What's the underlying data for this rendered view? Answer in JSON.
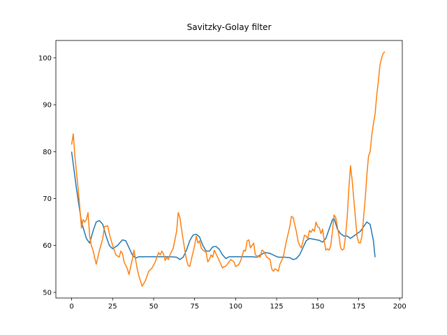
{
  "chart_data": {
    "type": "line",
    "title": "Savitzky-Golay filter",
    "xlim": [
      -9.6,
      201.6
    ],
    "ylim": [
      48.8,
      103.7
    ],
    "xticks": [
      0,
      25,
      50,
      75,
      100,
      125,
      150,
      175,
      200
    ],
    "yticks": [
      50,
      60,
      70,
      80,
      90,
      100
    ],
    "series": [
      {
        "color": "#1f77b4",
        "x": [
          0,
          3,
          6,
          9,
          11,
          13,
          15,
          17,
          19,
          21,
          23,
          25,
          28,
          31,
          33,
          35,
          37,
          39,
          41,
          45,
          50,
          55,
          60,
          64,
          66,
          68,
          70,
          72,
          74,
          76,
          78,
          80,
          82,
          84,
          86,
          88,
          90,
          92,
          94,
          96,
          100,
          105,
          110,
          113,
          115,
          118,
          121,
          124,
          126,
          130,
          133,
          135,
          137,
          139,
          141,
          143,
          145,
          148,
          151,
          153,
          155,
          157,
          159,
          160,
          162,
          164,
          166,
          168,
          170,
          172,
          174,
          176,
          178,
          180,
          182,
          184,
          185
        ],
        "values": [
          80,
          72,
          65,
          61.5,
          60.5,
          63,
          65,
          65.3,
          64.5,
          62,
          60,
          59.3,
          60,
          61.2,
          61,
          59.5,
          58,
          57.3,
          57.6,
          57.6,
          57.6,
          57.6,
          57.6,
          57.5,
          57,
          57.5,
          59,
          61,
          62.2,
          62.4,
          61.8,
          60,
          58.8,
          58.8,
          59.7,
          59.8,
          59.2,
          58,
          57.2,
          57.6,
          57.6,
          57.6,
          57.6,
          57.5,
          58,
          58.5,
          58.3,
          57.8,
          57.5,
          57.5,
          57.4,
          57,
          57.2,
          58,
          59.5,
          61,
          61.5,
          61.3,
          61.1,
          60.7,
          61.5,
          63.5,
          65.5,
          65.8,
          63.5,
          62.5,
          62,
          62,
          61.5,
          62,
          62.5,
          63,
          64,
          65,
          64.5,
          61,
          57.5
        ]
      },
      {
        "color": "#ff7f0e",
        "x": [
          0,
          1,
          2,
          4,
          5,
          6,
          7,
          8,
          9,
          10,
          11,
          12,
          13,
          15,
          17,
          19,
          20,
          22,
          23,
          25,
          27,
          29,
          30,
          31,
          32,
          34,
          35,
          36,
          37,
          38,
          39,
          40,
          41,
          43,
          45,
          47,
          49,
          51,
          53,
          54,
          55,
          56,
          57,
          58,
          59,
          60,
          62,
          64,
          65,
          66,
          67,
          69,
          70,
          71,
          72,
          73,
          75,
          76,
          77,
          78,
          79,
          80,
          81,
          82,
          83,
          84,
          85,
          86,
          87,
          89,
          91,
          92,
          93,
          94,
          96,
          97,
          99,
          100,
          102,
          103,
          105,
          106,
          107,
          108,
          109,
          110,
          111,
          112,
          113,
          115,
          116,
          117,
          119,
          121,
          122,
          123,
          124,
          125,
          126,
          127,
          129,
          131,
          133,
          134,
          135,
          137,
          138,
          139,
          140,
          141,
          142,
          143,
          144,
          145,
          146,
          147,
          148,
          149,
          150,
          151,
          152,
          153,
          154,
          155,
          156,
          157,
          158,
          159,
          160,
          161,
          162,
          163,
          164,
          165,
          166,
          167,
          168,
          169,
          170,
          171,
          172,
          173,
          174,
          175,
          176,
          177,
          178,
          179,
          180,
          181,
          182,
          183,
          184,
          185,
          186,
          187,
          188,
          189,
          190,
          191
        ],
        "values": [
          81.5,
          83.8,
          79,
          72,
          68,
          63.7,
          65.5,
          65,
          65.5,
          67,
          62,
          60,
          59,
          56,
          59,
          61.5,
          64,
          64.2,
          62.5,
          60,
          58,
          57.5,
          58.8,
          58.3,
          56.5,
          55,
          53.8,
          55.5,
          57,
          59,
          57,
          55,
          53.5,
          51.3,
          52.5,
          54.5,
          55.2,
          56.5,
          58.5,
          58,
          58.8,
          58.2,
          56.8,
          57.5,
          57,
          58,
          59.5,
          63,
          67,
          66,
          63.5,
          59,
          57,
          55.8,
          55.5,
          57,
          60,
          62,
          60.5,
          61,
          59.5,
          59,
          58.8,
          58.5,
          56.5,
          57,
          58,
          57.5,
          59,
          57.5,
          56,
          55.2,
          55.5,
          55.6,
          56.5,
          57,
          56.5,
          55.5,
          56,
          56.7,
          59,
          58.8,
          61,
          61.2,
          59.5,
          60,
          60.5,
          58,
          57.8,
          57.5,
          59,
          58.8,
          57.5,
          57,
          55,
          54.5,
          55,
          54.8,
          54.5,
          56,
          57.5,
          61,
          64,
          66.2,
          66,
          63,
          61,
          60,
          59.5,
          60.8,
          62.2,
          62,
          61.5,
          63.2,
          62.8,
          63.5,
          63,
          65,
          64,
          63.8,
          62.5,
          63.5,
          61,
          59,
          59.3,
          59,
          60,
          63,
          66.5,
          66,
          64,
          62,
          59.5,
          59,
          59.3,
          62,
          66,
          72,
          77,
          74,
          70,
          66,
          62,
          60.6,
          60.5,
          62,
          66,
          70,
          75,
          79,
          80,
          83.5,
          86,
          88,
          92,
          95,
          98.5,
          100,
          101,
          101.3
        ]
      }
    ]
  }
}
